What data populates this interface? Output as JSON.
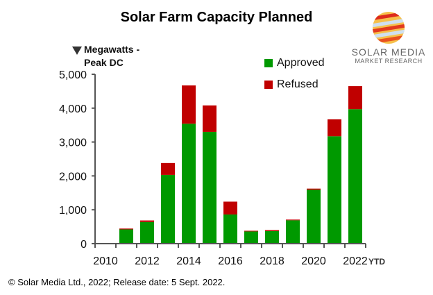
{
  "chart_data": {
    "type": "bar",
    "stacked": true,
    "title": "Solar Farm Capacity Planned",
    "ylabel": "Megawatts - Peak DC",
    "categories": [
      "2010",
      "2011",
      "2012",
      "2013",
      "2014",
      "2015",
      "2016",
      "2017",
      "2018",
      "2019",
      "2020",
      "2021",
      "2022"
    ],
    "tick_labels": [
      "2010",
      "2012",
      "2014",
      "2016",
      "2018",
      "2020",
      "2022"
    ],
    "x_suffix": "YTD",
    "ylim": [
      0,
      5000
    ],
    "yticks": [
      "0",
      "1,000",
      "2,000",
      "3,000",
      "4,000",
      "5,000"
    ],
    "grid": false,
    "legend_position": "top-right",
    "series": [
      {
        "name": "Approved",
        "color": "#009900",
        "values": [
          0,
          420,
          640,
          2030,
          3540,
          3300,
          860,
          360,
          370,
          690,
          1590,
          3170,
          3970
        ]
      },
      {
        "name": "Refused",
        "color": "#c00000",
        "values": [
          0,
          25,
          45,
          350,
          1130,
          780,
          380,
          20,
          30,
          20,
          35,
          500,
          680
        ]
      }
    ]
  },
  "logo": {
    "line1": "SOLAR MEDIA",
    "line2": "MARKET RESEARCH"
  },
  "footer": "© Solar Media Ltd., 2022; Release date: 5 Sept. 2022."
}
